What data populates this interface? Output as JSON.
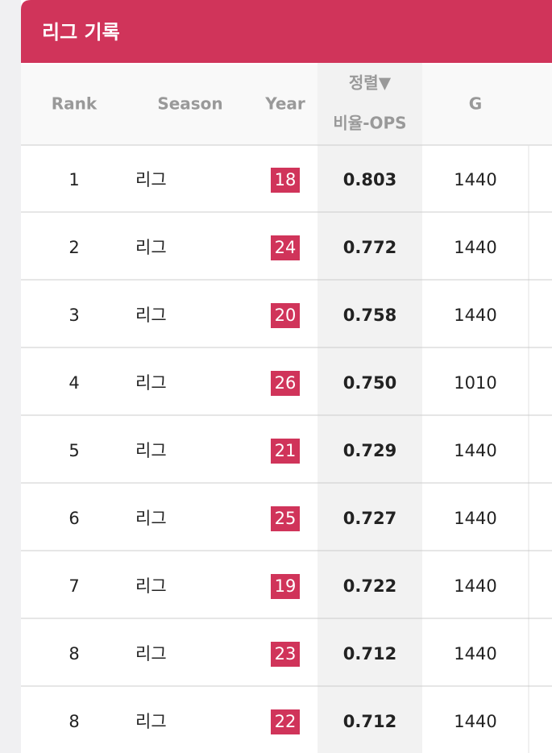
{
  "header": {
    "title": "리그 기록"
  },
  "table": {
    "columns": [
      "Rank",
      "Season",
      "Year",
      "비율-OPS",
      "G"
    ],
    "sort_label": "정렬▼",
    "rows": [
      [
        1,
        "리그",
        18,
        "0.803",
        1440
      ],
      [
        2,
        "리그",
        24,
        "0.772",
        1440
      ],
      [
        3,
        "리그",
        20,
        "0.758",
        1440
      ],
      [
        4,
        "리그",
        26,
        "0.750",
        1010
      ],
      [
        5,
        "리그",
        21,
        "0.729",
        1440
      ],
      [
        6,
        "리그",
        25,
        "0.727",
        1440
      ],
      [
        7,
        "리그",
        19,
        "0.722",
        1440
      ],
      [
        8,
        "리그",
        23,
        "0.712",
        1440
      ],
      [
        8,
        "리그",
        22,
        "0.712",
        1440
      ]
    ]
  }
}
